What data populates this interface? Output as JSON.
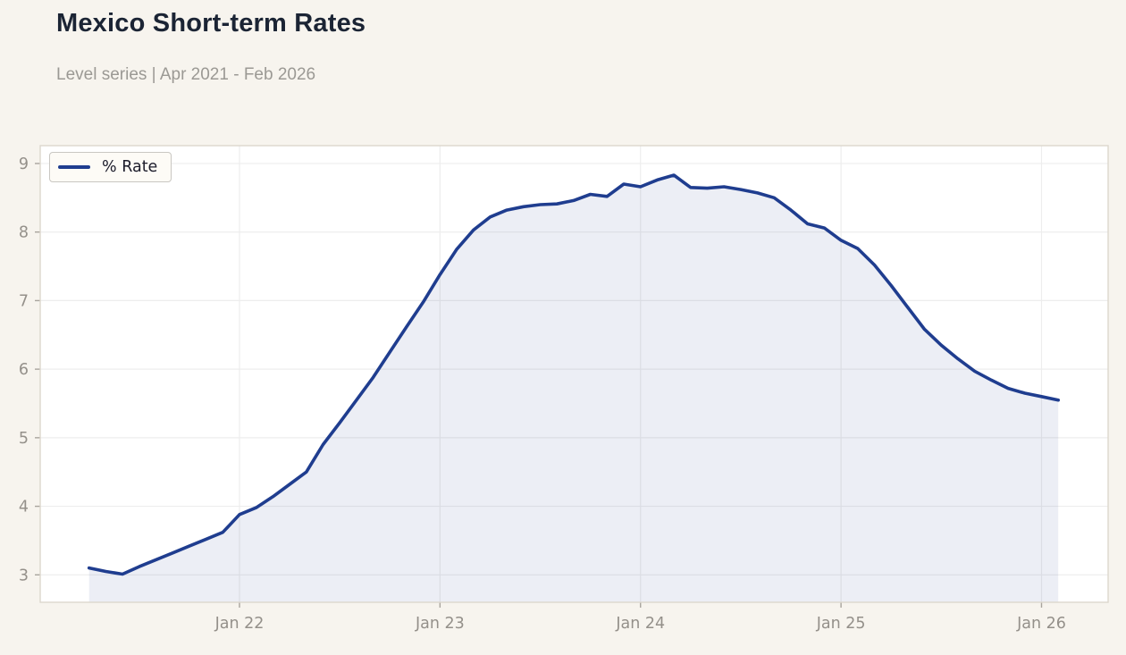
{
  "header": {
    "title": "Mexico Short-term Rates",
    "subtitle": "Level series | Apr 2021 - Feb 2026"
  },
  "legend": {
    "series_label": "% Rate"
  },
  "colors": {
    "page_background": "#f7f4ee",
    "plot_background": "#ffffff",
    "plot_border": "#ddd7cd",
    "gridline": "#ededed",
    "tick": "#a8a49d",
    "axis_label": "#94908a",
    "line": "#1f3d8f",
    "area_fill": "rgba(31,61,143,0.085)",
    "title_text": "#1b2434",
    "subtitle_text": "#9b9994"
  },
  "chart_data": {
    "type": "area",
    "title": "Mexico Short-term Rates",
    "subtitle": "Level series | Apr 2021 - Feb 2026",
    "frequency": "monthly",
    "x_start": "2021-04",
    "x_end": "2026-02",
    "grid": true,
    "legend_position": "top-left",
    "xlabel": "",
    "ylabel": "",
    "y_ticks": [
      3,
      4,
      5,
      6,
      7,
      8,
      9
    ],
    "ylim": [
      2.6,
      9.26
    ],
    "x_tick_labels": [
      "Jan 22",
      "Jan 23",
      "Jan 24",
      "Jan 25",
      "Jan 26"
    ],
    "x_tick_month_index": [
      9,
      21,
      33,
      45,
      57
    ],
    "series": [
      {
        "name": "% Rate",
        "unit": "percent",
        "months": [
          "2021-04",
          "2021-05",
          "2021-06",
          "2021-07",
          "2021-08",
          "2021-09",
          "2021-10",
          "2021-11",
          "2021-12",
          "2022-01",
          "2022-02",
          "2022-03",
          "2022-04",
          "2022-05",
          "2022-06",
          "2022-07",
          "2022-08",
          "2022-09",
          "2022-10",
          "2022-11",
          "2022-12",
          "2023-01",
          "2023-02",
          "2023-03",
          "2023-04",
          "2023-05",
          "2023-06",
          "2023-07",
          "2023-08",
          "2023-09",
          "2023-10",
          "2023-11",
          "2023-12",
          "2024-01",
          "2024-02",
          "2024-03",
          "2024-04",
          "2024-05",
          "2024-06",
          "2024-07",
          "2024-08",
          "2024-09",
          "2024-10",
          "2024-11",
          "2024-12",
          "2025-01",
          "2025-02",
          "2025-03",
          "2025-04",
          "2025-05",
          "2025-06",
          "2025-07",
          "2025-08",
          "2025-09",
          "2025-10",
          "2025-11",
          "2025-12",
          "2026-01",
          "2026-02"
        ],
        "values": [
          3.1,
          3.05,
          3.01,
          3.12,
          3.22,
          3.32,
          3.42,
          3.52,
          3.62,
          3.88,
          3.98,
          4.14,
          4.32,
          4.5,
          4.9,
          5.22,
          5.55,
          5.88,
          6.25,
          6.62,
          6.98,
          7.38,
          7.75,
          8.03,
          8.22,
          8.32,
          8.37,
          8.4,
          8.41,
          8.46,
          8.55,
          8.52,
          8.7,
          8.66,
          8.76,
          8.83,
          8.65,
          8.64,
          8.66,
          8.62,
          8.57,
          8.5,
          8.32,
          8.12,
          8.06,
          7.88,
          7.76,
          7.52,
          7.22,
          6.9,
          6.58,
          6.35,
          6.15,
          5.97,
          5.84,
          5.72,
          5.65,
          5.6,
          5.55
        ]
      }
    ]
  }
}
